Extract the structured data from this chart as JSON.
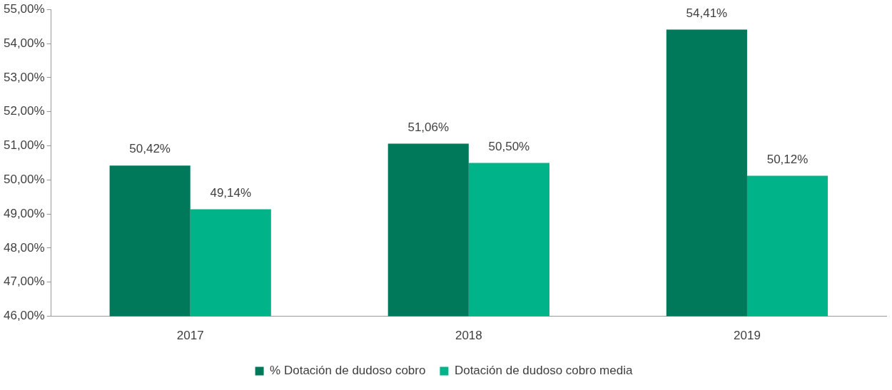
{
  "chart_data": {
    "type": "bar",
    "categories": [
      "2017",
      "2018",
      "2019"
    ],
    "series": [
      {
        "name": "% Dotación de dudoso cobro",
        "color": "#00785a",
        "values": [
          50.42,
          51.06,
          54.41
        ],
        "value_labels": [
          "50,42%",
          "51,06%",
          "54,41%"
        ]
      },
      {
        "name": "Dotación de dudoso cobro media",
        "color": "#00b388",
        "values": [
          49.14,
          50.5,
          50.12
        ],
        "value_labels": [
          "49,14%",
          "50,50%",
          "50,12%"
        ]
      }
    ],
    "ylim": [
      46,
      55
    ],
    "yticks": [
      {
        "value": 46,
        "label": "46,00%"
      },
      {
        "value": 47,
        "label": "47,00%"
      },
      {
        "value": 48,
        "label": "48,00%"
      },
      {
        "value": 49,
        "label": "49,00%"
      },
      {
        "value": 50,
        "label": "50,00%"
      },
      {
        "value": 51,
        "label": "51,00%"
      },
      {
        "value": 52,
        "label": "52,00%"
      },
      {
        "value": 53,
        "label": "53,00%"
      },
      {
        "value": 54,
        "label": "54,00%"
      },
      {
        "value": 55,
        "label": "55,00%"
      }
    ],
    "grid": false,
    "legend": "bottom"
  }
}
